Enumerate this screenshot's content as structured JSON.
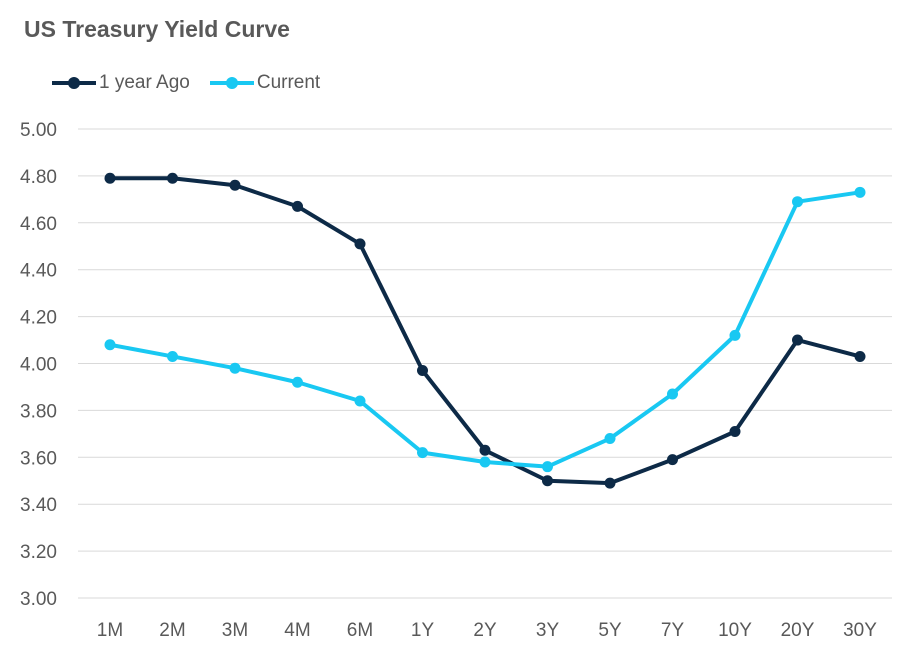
{
  "chart_data": {
    "type": "line",
    "title": "US Treasury Yield Curve",
    "xlabel": "",
    "ylabel": "",
    "categories": [
      "1M",
      "2M",
      "3M",
      "4M",
      "6M",
      "1Y",
      "2Y",
      "3Y",
      "5Y",
      "7Y",
      "10Y",
      "20Y",
      "30Y"
    ],
    "ylim": [
      3.0,
      5.0
    ],
    "yticks": [
      "3.00",
      "3.20",
      "3.40",
      "3.60",
      "3.80",
      "4.00",
      "4.20",
      "4.40",
      "4.60",
      "4.80",
      "5.00"
    ],
    "grid": true,
    "legend_position": "top-left",
    "series": [
      {
        "name": "1 year Ago",
        "color": "#0d2a47",
        "values": [
          4.79,
          4.79,
          4.76,
          4.67,
          4.51,
          3.97,
          3.63,
          3.5,
          3.49,
          3.59,
          3.71,
          4.1,
          4.03
        ]
      },
      {
        "name": "Current",
        "color": "#19c8f2",
        "values": [
          4.08,
          4.03,
          3.98,
          3.92,
          3.84,
          3.62,
          3.58,
          3.56,
          3.68,
          3.87,
          4.12,
          4.69,
          4.73
        ]
      }
    ]
  }
}
